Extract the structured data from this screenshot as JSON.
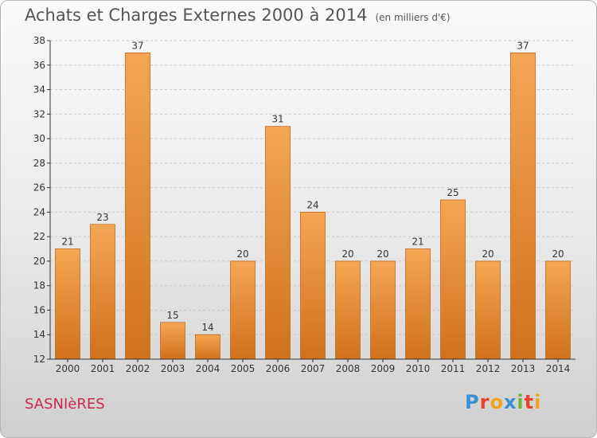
{
  "title": "Achats et Charges Externes 2000 à 2014",
  "subtitle": "(en milliers d'€)",
  "commune": "SASNIèRES",
  "logo": {
    "text": "Proxiti",
    "letters": [
      {
        "char": "P",
        "color": "#3a8fd1"
      },
      {
        "char": "r",
        "color": "#e8412c"
      },
      {
        "char": "o",
        "color": "#f1a51e"
      },
      {
        "char": "x",
        "color": "#3a8fd1"
      },
      {
        "char": "i",
        "color": "#6fb53a"
      },
      {
        "char": "t",
        "color": "#e8412c"
      },
      {
        "char": "i",
        "color": "#f1a51e"
      }
    ]
  },
  "colors": {
    "bar_light": "#f5a653",
    "bar_dark": "#d0711b",
    "bar_stroke": "#c06a1d",
    "grid": "#c8c8c8",
    "axis": "#333333",
    "text": "#333333"
  },
  "chart_data": {
    "type": "bar",
    "categories": [
      "2000",
      "2001",
      "2002",
      "2003",
      "2004",
      "2005",
      "2006",
      "2007",
      "2008",
      "2009",
      "2010",
      "2011",
      "2012",
      "2013",
      "2014"
    ],
    "values": [
      21,
      23,
      37,
      15,
      14,
      20,
      31,
      24,
      20,
      20,
      21,
      25,
      20,
      37,
      20
    ],
    "data_labels": [
      "21",
      "23",
      "37",
      "15",
      "14",
      "20",
      "31",
      "24",
      "20",
      "20",
      "21",
      "25",
      "20",
      "37",
      "20"
    ],
    "ylim": [
      12,
      38
    ],
    "yticks": [
      12,
      14,
      16,
      18,
      20,
      22,
      24,
      26,
      28,
      30,
      32,
      34,
      36,
      38
    ],
    "grid": true
  }
}
